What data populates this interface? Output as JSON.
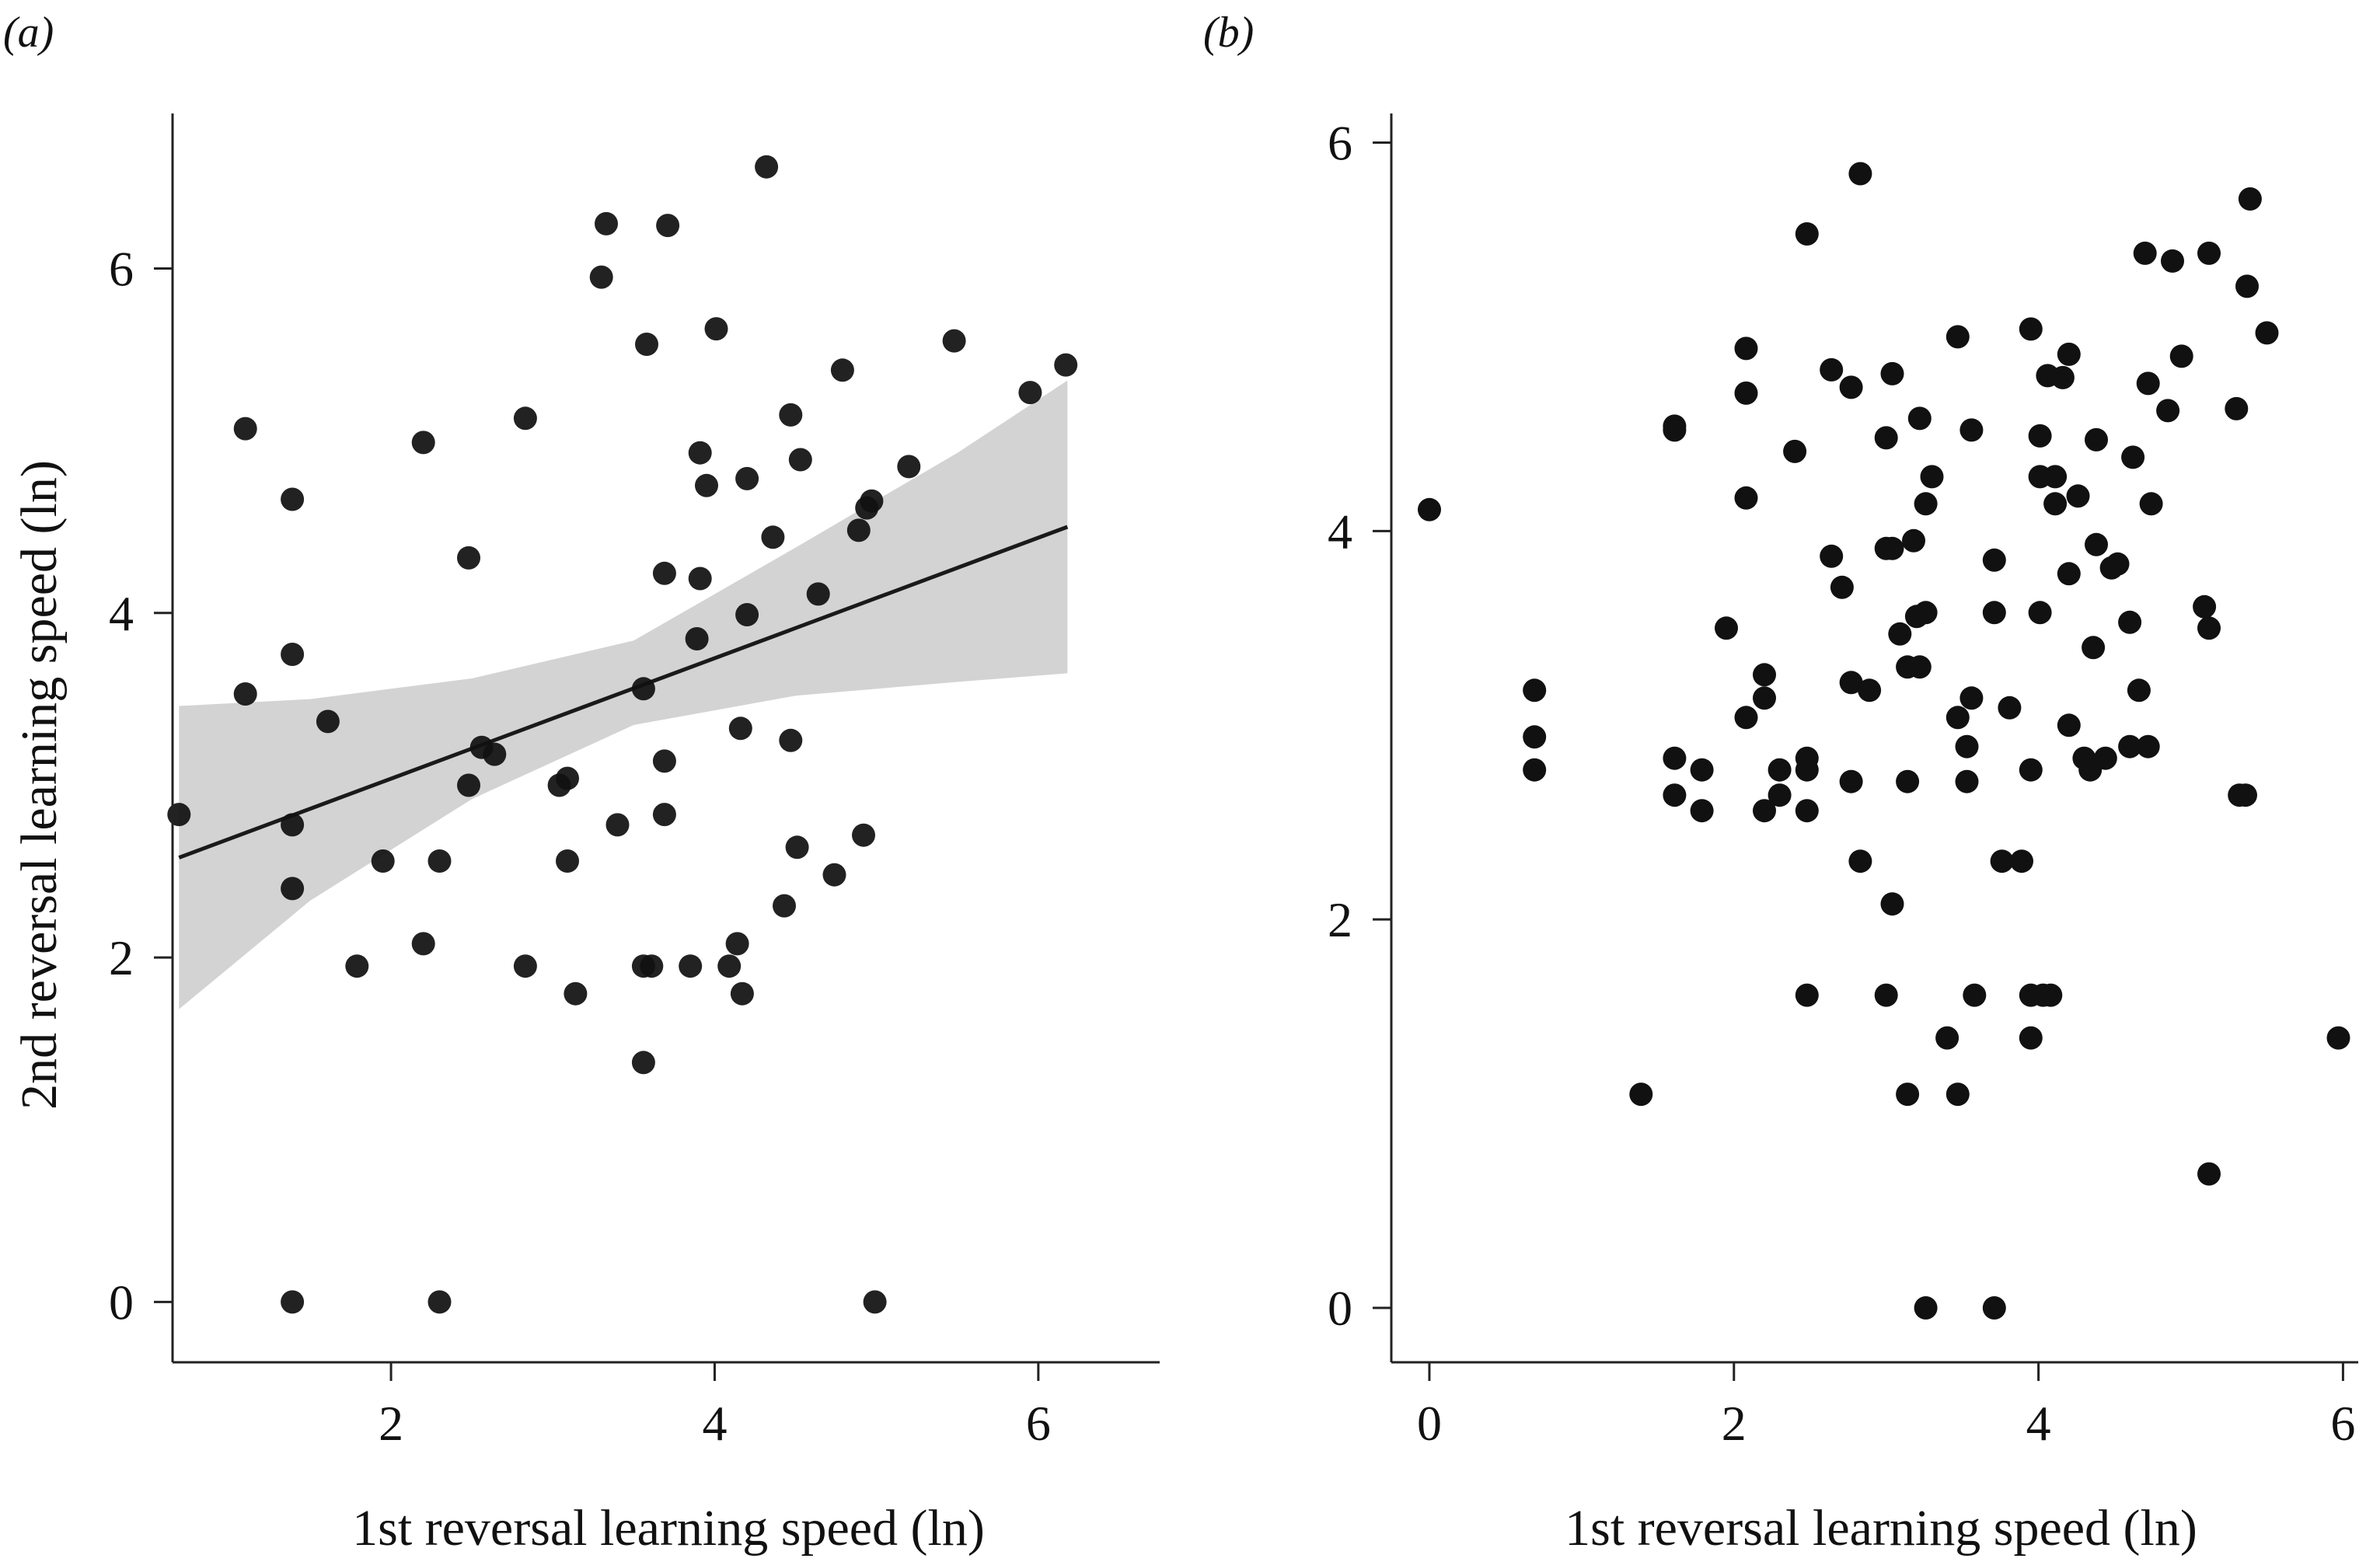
{
  "chart_data": [
    {
      "type": "scatter",
      "panel_label": "(a)",
      "title": "",
      "xlabel": "1st reversal learning speed (ln)",
      "ylabel": "2nd reversal learning speed (ln)",
      "xlim": [
        0.65,
        6.75
      ],
      "ylim": [
        -0.35,
        6.9
      ],
      "xticks": [
        2,
        4,
        6
      ],
      "yticks": [
        0,
        2,
        4,
        6
      ],
      "grid": false,
      "fit": {
        "type": "linear",
        "line": [
          [
            0.69,
            2.58
          ],
          [
            6.18,
            4.5
          ]
        ],
        "ci_band": {
          "x": [
            0.69,
            1.5,
            2.5,
            3.5,
            4.5,
            5.5,
            6.18
          ],
          "lower": [
            1.7,
            2.33,
            2.92,
            3.35,
            3.52,
            3.6,
            3.65
          ],
          "upper": [
            3.46,
            3.5,
            3.62,
            3.84,
            4.38,
            4.93,
            5.35
          ]
        },
        "line_color": "#1a1a1a",
        "band_color": "#d3d3d3"
      },
      "points_color": "#111111",
      "points": [
        [
          0.69,
          2.83
        ],
        [
          1.1,
          3.53
        ],
        [
          1.1,
          5.07
        ],
        [
          1.39,
          4.66
        ],
        [
          1.39,
          3.76
        ],
        [
          1.39,
          2.77
        ],
        [
          1.39,
          2.4
        ],
        [
          1.39,
          0.0
        ],
        [
          1.61,
          3.37
        ],
        [
          1.79,
          1.95
        ],
        [
          1.95,
          2.56
        ],
        [
          2.2,
          4.99
        ],
        [
          2.2,
          2.08
        ],
        [
          2.3,
          2.56
        ],
        [
          2.3,
          0.0
        ],
        [
          2.48,
          4.32
        ],
        [
          2.48,
          3.0
        ],
        [
          2.56,
          3.22
        ],
        [
          2.64,
          3.18
        ],
        [
          2.83,
          5.13
        ],
        [
          2.83,
          1.95
        ],
        [
          3.04,
          3.0
        ],
        [
          3.09,
          3.04
        ],
        [
          3.09,
          2.56
        ],
        [
          3.14,
          1.79
        ],
        [
          3.3,
          5.95
        ],
        [
          3.33,
          6.26
        ],
        [
          3.4,
          2.77
        ],
        [
          3.56,
          3.56
        ],
        [
          3.56,
          1.95
        ],
        [
          3.56,
          1.39
        ],
        [
          3.58,
          5.56
        ],
        [
          3.61,
          1.95
        ],
        [
          3.69,
          4.23
        ],
        [
          3.69,
          3.14
        ],
        [
          3.69,
          2.83
        ],
        [
          3.71,
          6.25
        ],
        [
          3.85,
          1.95
        ],
        [
          3.89,
          3.85
        ],
        [
          3.91,
          4.93
        ],
        [
          3.91,
          4.2
        ],
        [
          3.95,
          4.74
        ],
        [
          4.01,
          5.65
        ],
        [
          4.09,
          1.95
        ],
        [
          4.14,
          2.08
        ],
        [
          4.16,
          3.33
        ],
        [
          4.17,
          1.79
        ],
        [
          4.2,
          4.78
        ],
        [
          4.2,
          3.99
        ],
        [
          4.32,
          6.59
        ],
        [
          4.36,
          4.44
        ],
        [
          4.43,
          2.3
        ],
        [
          4.47,
          5.15
        ],
        [
          4.47,
          3.26
        ],
        [
          4.51,
          2.64
        ],
        [
          4.53,
          4.89
        ],
        [
          4.64,
          4.11
        ],
        [
          4.74,
          2.48
        ],
        [
          4.79,
          5.41
        ],
        [
          4.89,
          4.48
        ],
        [
          4.92,
          2.71
        ],
        [
          4.94,
          4.61
        ],
        [
          4.97,
          4.65
        ],
        [
          4.99,
          0.0
        ],
        [
          5.2,
          4.85
        ],
        [
          5.48,
          5.58
        ],
        [
          5.95,
          5.28
        ],
        [
          6.17,
          5.44
        ]
      ]
    },
    {
      "type": "scatter",
      "panel_label": "(b)",
      "title": "",
      "xlabel": "1st reversal learning speed (ln)",
      "ylabel": "",
      "xlim": [
        -0.25,
        6.1
      ],
      "ylim": [
        -0.28,
        6.15
      ],
      "xticks": [
        0,
        2,
        4,
        6
      ],
      "yticks": [
        0,
        2,
        4,
        6
      ],
      "grid": false,
      "points_color": "#111111",
      "points": [
        [
          0.0,
          4.11
        ],
        [
          0.69,
          3.18
        ],
        [
          0.69,
          2.94
        ],
        [
          0.69,
          2.77
        ],
        [
          1.39,
          1.1
        ],
        [
          1.61,
          4.54
        ],
        [
          1.61,
          4.52
        ],
        [
          1.61,
          2.83
        ],
        [
          1.61,
          2.64
        ],
        [
          1.79,
          2.77
        ],
        [
          1.79,
          2.56
        ],
        [
          1.95,
          3.5
        ],
        [
          2.08,
          4.94
        ],
        [
          2.08,
          4.71
        ],
        [
          2.08,
          4.17
        ],
        [
          2.08,
          3.04
        ],
        [
          2.2,
          3.26
        ],
        [
          2.2,
          3.14
        ],
        [
          2.2,
          2.56
        ],
        [
          2.3,
          2.77
        ],
        [
          2.3,
          2.64
        ],
        [
          2.4,
          4.41
        ],
        [
          2.48,
          5.53
        ],
        [
          2.48,
          2.83
        ],
        [
          2.48,
          2.77
        ],
        [
          2.48,
          2.56
        ],
        [
          2.48,
          1.61
        ],
        [
          2.64,
          4.83
        ],
        [
          2.64,
          3.87
        ],
        [
          2.71,
          3.71
        ],
        [
          2.77,
          4.74
        ],
        [
          2.77,
          3.22
        ],
        [
          2.77,
          2.71
        ],
        [
          2.83,
          5.84
        ],
        [
          2.83,
          2.3
        ],
        [
          2.89,
          3.18
        ],
        [
          3.0,
          4.48
        ],
        [
          3.0,
          3.91
        ],
        [
          3.0,
          1.61
        ],
        [
          3.04,
          4.81
        ],
        [
          3.04,
          3.91
        ],
        [
          3.04,
          2.08
        ],
        [
          3.09,
          3.47
        ],
        [
          3.14,
          3.3
        ],
        [
          3.14,
          2.71
        ],
        [
          3.14,
          1.1
        ],
        [
          3.18,
          3.95
        ],
        [
          3.2,
          3.56
        ],
        [
          3.22,
          4.58
        ],
        [
          3.22,
          3.3
        ],
        [
          3.26,
          4.14
        ],
        [
          3.26,
          3.58
        ],
        [
          3.26,
          0.0
        ],
        [
          3.3,
          4.28
        ],
        [
          3.4,
          1.39
        ],
        [
          3.47,
          5.0
        ],
        [
          3.47,
          3.04
        ],
        [
          3.47,
          1.1
        ],
        [
          3.53,
          2.89
        ],
        [
          3.53,
          2.71
        ],
        [
          3.56,
          4.52
        ],
        [
          3.56,
          3.14
        ],
        [
          3.58,
          1.61
        ],
        [
          3.71,
          3.85
        ],
        [
          3.71,
          3.58
        ],
        [
          3.71,
          0.0
        ],
        [
          3.76,
          2.3
        ],
        [
          3.81,
          3.09
        ],
        [
          3.89,
          2.3
        ],
        [
          3.95,
          5.04
        ],
        [
          3.95,
          2.77
        ],
        [
          3.95,
          1.61
        ],
        [
          3.95,
          1.39
        ],
        [
          4.01,
          4.49
        ],
        [
          4.01,
          4.28
        ],
        [
          4.01,
          3.58
        ],
        [
          4.03,
          1.61
        ],
        [
          4.06,
          4.8
        ],
        [
          4.08,
          1.61
        ],
        [
          4.11,
          4.28
        ],
        [
          4.11,
          4.14
        ],
        [
          4.16,
          4.79
        ],
        [
          4.2,
          4.91
        ],
        [
          4.2,
          3.78
        ],
        [
          4.2,
          3.0
        ],
        [
          4.26,
          4.18
        ],
        [
          4.3,
          2.83
        ],
        [
          4.34,
          2.77
        ],
        [
          4.36,
          3.4
        ],
        [
          4.38,
          4.47
        ],
        [
          4.38,
          3.93
        ],
        [
          4.44,
          2.83
        ],
        [
          4.48,
          3.81
        ],
        [
          4.52,
          3.83
        ],
        [
          4.6,
          3.53
        ],
        [
          4.6,
          2.89
        ],
        [
          4.62,
          4.38
        ],
        [
          4.66,
          3.18
        ],
        [
          4.7,
          5.43
        ],
        [
          4.72,
          4.76
        ],
        [
          4.72,
          2.89
        ],
        [
          4.74,
          4.14
        ],
        [
          4.85,
          4.62
        ],
        [
          4.88,
          5.39
        ],
        [
          4.94,
          4.9
        ],
        [
          5.09,
          3.61
        ],
        [
          5.12,
          5.43
        ],
        [
          5.12,
          3.5
        ],
        [
          5.12,
          0.69
        ],
        [
          5.3,
          4.63
        ],
        [
          5.32,
          2.64
        ],
        [
          5.36,
          2.64
        ],
        [
          5.37,
          5.26
        ],
        [
          5.39,
          5.71
        ],
        [
          5.5,
          5.02
        ],
        [
          5.97,
          1.39
        ]
      ]
    }
  ]
}
